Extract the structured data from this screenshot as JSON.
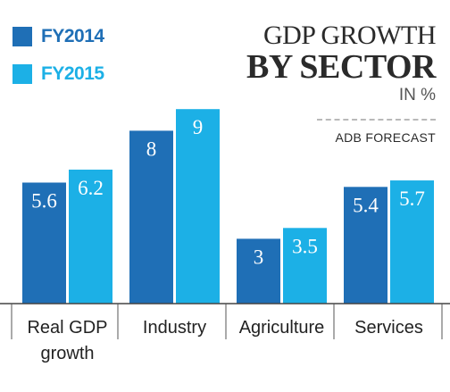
{
  "legend": {
    "items": [
      {
        "label": "FY2014",
        "color": "#1f6fb6"
      },
      {
        "label": "FY2015",
        "color": "#1cb0e6"
      }
    ]
  },
  "title": {
    "line1": "GDP GROWTH",
    "line2": "BY SECTOR",
    "unit": "IN %"
  },
  "note": "ADB FORECAST",
  "chart_data": {
    "type": "bar",
    "title": "GDP GROWTH BY SECTOR",
    "ylabel": "IN %",
    "categories": [
      "Real GDP growth",
      "Industry",
      "Agriculture",
      "Services"
    ],
    "category_lines": [
      [
        "Real GDP",
        "growth"
      ],
      [
        "Industry"
      ],
      [
        "Agriculture"
      ],
      [
        "Services"
      ]
    ],
    "series": [
      {
        "name": "FY2014",
        "values": [
          5.6,
          8,
          3,
          5.4
        ],
        "labels": [
          "5.6",
          "8",
          "3",
          "5.4"
        ]
      },
      {
        "name": "FY2015",
        "values": [
          6.2,
          9,
          3.5,
          5.7
        ],
        "labels": [
          "6.2",
          "9",
          "3.5",
          "5.7"
        ]
      }
    ],
    "ylim": [
      0,
      10
    ],
    "grid": false,
    "legend_position": "top-left"
  }
}
